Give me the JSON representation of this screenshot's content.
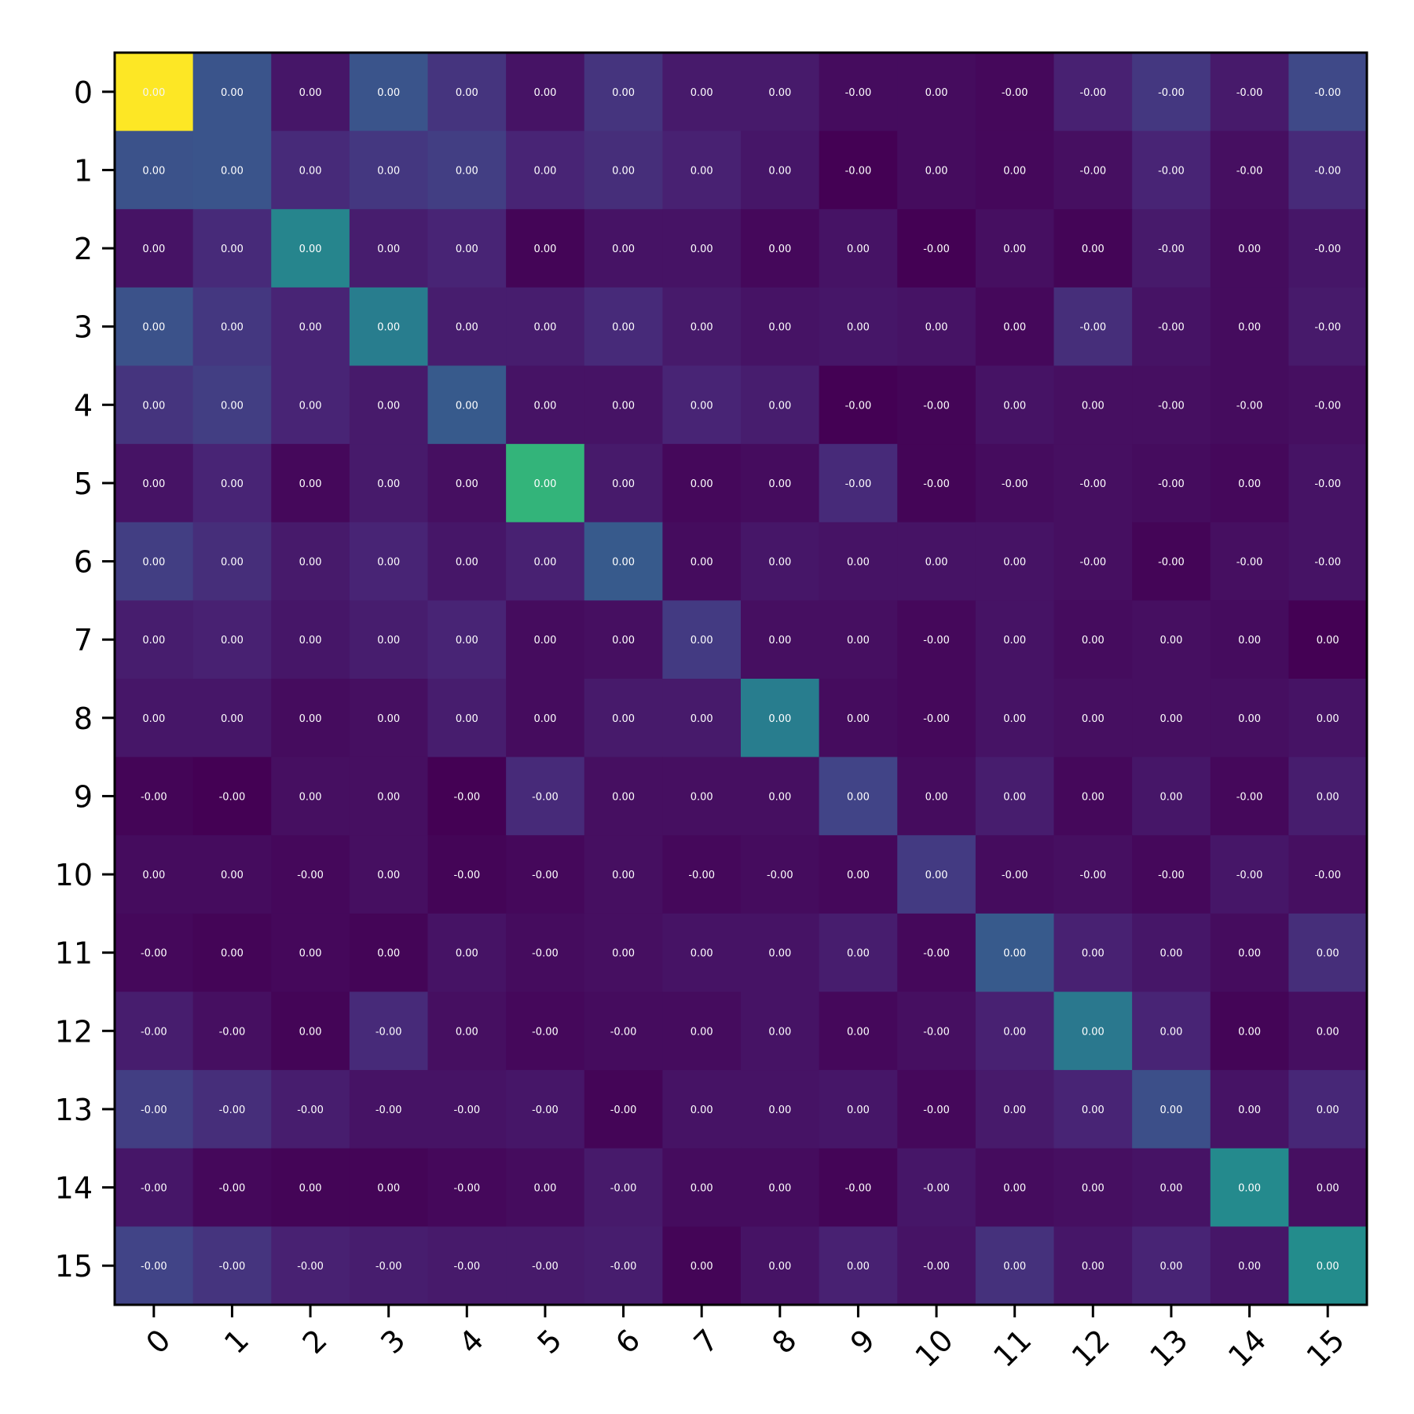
{
  "chart_data": {
    "type": "heatmap",
    "colormap": "viridis",
    "grid": false,
    "legend": "none",
    "x_ticks": [
      "0",
      "1",
      "2",
      "3",
      "4",
      "5",
      "6",
      "7",
      "8",
      "9",
      "10",
      "11",
      "12",
      "13",
      "14",
      "15"
    ],
    "y_ticks": [
      "0",
      "1",
      "2",
      "3",
      "4",
      "5",
      "6",
      "7",
      "8",
      "9",
      "10",
      "11",
      "12",
      "13",
      "14",
      "15"
    ],
    "intensity": [
      [
        1.0,
        0.26,
        0.06,
        0.26,
        0.15,
        0.05,
        0.15,
        0.07,
        0.07,
        0.03,
        0.03,
        0.02,
        0.09,
        0.16,
        0.07,
        0.22
      ],
      [
        0.25,
        0.26,
        0.12,
        0.16,
        0.18,
        0.1,
        0.13,
        0.09,
        0.06,
        0.0,
        0.03,
        0.02,
        0.04,
        0.1,
        0.04,
        0.12
      ],
      [
        0.05,
        0.12,
        0.45,
        0.08,
        0.1,
        0.01,
        0.05,
        0.05,
        0.02,
        0.05,
        0.0,
        0.04,
        0.01,
        0.07,
        0.03,
        0.06
      ],
      [
        0.25,
        0.16,
        0.1,
        0.42,
        0.08,
        0.08,
        0.12,
        0.07,
        0.05,
        0.06,
        0.05,
        0.02,
        0.13,
        0.05,
        0.03,
        0.07
      ],
      [
        0.15,
        0.18,
        0.1,
        0.07,
        0.28,
        0.05,
        0.05,
        0.1,
        0.08,
        0.0,
        0.01,
        0.05,
        0.04,
        0.04,
        0.03,
        0.04
      ],
      [
        0.05,
        0.1,
        0.02,
        0.07,
        0.04,
        0.65,
        0.07,
        0.02,
        0.03,
        0.12,
        0.01,
        0.03,
        0.04,
        0.03,
        0.02,
        0.05
      ],
      [
        0.18,
        0.13,
        0.07,
        0.1,
        0.06,
        0.09,
        0.28,
        0.03,
        0.06,
        0.05,
        0.05,
        0.05,
        0.04,
        0.01,
        0.04,
        0.05
      ],
      [
        0.08,
        0.09,
        0.06,
        0.08,
        0.1,
        0.03,
        0.04,
        0.17,
        0.04,
        0.04,
        0.02,
        0.05,
        0.03,
        0.04,
        0.03,
        0.0
      ],
      [
        0.06,
        0.06,
        0.03,
        0.04,
        0.08,
        0.03,
        0.07,
        0.07,
        0.42,
        0.03,
        0.02,
        0.05,
        0.04,
        0.04,
        0.04,
        0.05
      ],
      [
        0.01,
        0.0,
        0.04,
        0.04,
        0.0,
        0.12,
        0.04,
        0.04,
        0.04,
        0.2,
        0.03,
        0.08,
        0.02,
        0.06,
        0.02,
        0.08
      ],
      [
        0.03,
        0.03,
        0.02,
        0.04,
        0.01,
        0.02,
        0.04,
        0.02,
        0.03,
        0.02,
        0.17,
        0.03,
        0.04,
        0.02,
        0.06,
        0.04
      ],
      [
        0.02,
        0.01,
        0.02,
        0.01,
        0.05,
        0.03,
        0.04,
        0.05,
        0.05,
        0.08,
        0.02,
        0.28,
        0.09,
        0.06,
        0.03,
        0.13
      ],
      [
        0.08,
        0.04,
        0.01,
        0.12,
        0.04,
        0.02,
        0.03,
        0.03,
        0.05,
        0.02,
        0.04,
        0.09,
        0.4,
        0.1,
        0.01,
        0.04
      ],
      [
        0.18,
        0.13,
        0.08,
        0.05,
        0.05,
        0.06,
        0.01,
        0.05,
        0.05,
        0.06,
        0.02,
        0.07,
        0.1,
        0.24,
        0.05,
        0.11
      ],
      [
        0.06,
        0.02,
        0.01,
        0.01,
        0.02,
        0.03,
        0.07,
        0.03,
        0.03,
        0.01,
        0.06,
        0.03,
        0.04,
        0.05,
        0.47,
        0.04
      ],
      [
        0.2,
        0.15,
        0.09,
        0.08,
        0.07,
        0.07,
        0.08,
        0.01,
        0.05,
        0.09,
        0.05,
        0.14,
        0.06,
        0.1,
        0.06,
        0.48
      ]
    ],
    "labels": [
      [
        "0.00",
        "0.00",
        "0.00",
        "0.00",
        "0.00",
        "0.00",
        "0.00",
        "0.00",
        "0.00",
        "-0.00",
        "0.00",
        "-0.00",
        "-0.00",
        "-0.00",
        "-0.00",
        "-0.00"
      ],
      [
        "0.00",
        "0.00",
        "0.00",
        "0.00",
        "0.00",
        "0.00",
        "0.00",
        "0.00",
        "0.00",
        "-0.00",
        "0.00",
        "0.00",
        "-0.00",
        "-0.00",
        "-0.00",
        "-0.00"
      ],
      [
        "0.00",
        "0.00",
        "0.00",
        "0.00",
        "0.00",
        "0.00",
        "0.00",
        "0.00",
        "0.00",
        "0.00",
        "-0.00",
        "0.00",
        "0.00",
        "-0.00",
        "0.00",
        "-0.00"
      ],
      [
        "0.00",
        "0.00",
        "0.00",
        "0.00",
        "0.00",
        "0.00",
        "0.00",
        "0.00",
        "0.00",
        "0.00",
        "0.00",
        "0.00",
        "-0.00",
        "-0.00",
        "0.00",
        "-0.00"
      ],
      [
        "0.00",
        "0.00",
        "0.00",
        "0.00",
        "0.00",
        "0.00",
        "0.00",
        "0.00",
        "0.00",
        "-0.00",
        "-0.00",
        "0.00",
        "0.00",
        "-0.00",
        "-0.00",
        "-0.00"
      ],
      [
        "0.00",
        "0.00",
        "0.00",
        "0.00",
        "0.00",
        "0.00",
        "0.00",
        "0.00",
        "0.00",
        "-0.00",
        "-0.00",
        "-0.00",
        "-0.00",
        "-0.00",
        "0.00",
        "-0.00"
      ],
      [
        "0.00",
        "0.00",
        "0.00",
        "0.00",
        "0.00",
        "0.00",
        "0.00",
        "0.00",
        "0.00",
        "0.00",
        "0.00",
        "0.00",
        "-0.00",
        "-0.00",
        "-0.00",
        "-0.00"
      ],
      [
        "0.00",
        "0.00",
        "0.00",
        "0.00",
        "0.00",
        "0.00",
        "0.00",
        "0.00",
        "0.00",
        "0.00",
        "-0.00",
        "0.00",
        "0.00",
        "0.00",
        "0.00",
        "0.00"
      ],
      [
        "0.00",
        "0.00",
        "0.00",
        "0.00",
        "0.00",
        "0.00",
        "0.00",
        "0.00",
        "0.00",
        "0.00",
        "-0.00",
        "0.00",
        "0.00",
        "0.00",
        "0.00",
        "0.00"
      ],
      [
        "-0.00",
        "-0.00",
        "0.00",
        "0.00",
        "-0.00",
        "-0.00",
        "0.00",
        "0.00",
        "0.00",
        "0.00",
        "0.00",
        "0.00",
        "0.00",
        "0.00",
        "-0.00",
        "0.00"
      ],
      [
        "0.00",
        "0.00",
        "-0.00",
        "0.00",
        "-0.00",
        "-0.00",
        "0.00",
        "-0.00",
        "-0.00",
        "0.00",
        "0.00",
        "-0.00",
        "-0.00",
        "-0.00",
        "-0.00",
        "-0.00"
      ],
      [
        "-0.00",
        "0.00",
        "0.00",
        "0.00",
        "0.00",
        "-0.00",
        "0.00",
        "0.00",
        "0.00",
        "0.00",
        "-0.00",
        "0.00",
        "0.00",
        "0.00",
        "0.00",
        "0.00"
      ],
      [
        "-0.00",
        "-0.00",
        "0.00",
        "-0.00",
        "0.00",
        "-0.00",
        "-0.00",
        "0.00",
        "0.00",
        "0.00",
        "-0.00",
        "0.00",
        "0.00",
        "0.00",
        "0.00",
        "0.00"
      ],
      [
        "-0.00",
        "-0.00",
        "-0.00",
        "-0.00",
        "-0.00",
        "-0.00",
        "-0.00",
        "0.00",
        "0.00",
        "0.00",
        "-0.00",
        "0.00",
        "0.00",
        "0.00",
        "0.00",
        "0.00"
      ],
      [
        "-0.00",
        "-0.00",
        "0.00",
        "0.00",
        "-0.00",
        "0.00",
        "-0.00",
        "0.00",
        "0.00",
        "-0.00",
        "-0.00",
        "0.00",
        "0.00",
        "0.00",
        "0.00",
        "0.00"
      ],
      [
        "-0.00",
        "-0.00",
        "-0.00",
        "-0.00",
        "-0.00",
        "-0.00",
        "-0.00",
        "0.00",
        "0.00",
        "0.00",
        "-0.00",
        "0.00",
        "0.00",
        "0.00",
        "0.00",
        "0.00"
      ]
    ]
  }
}
